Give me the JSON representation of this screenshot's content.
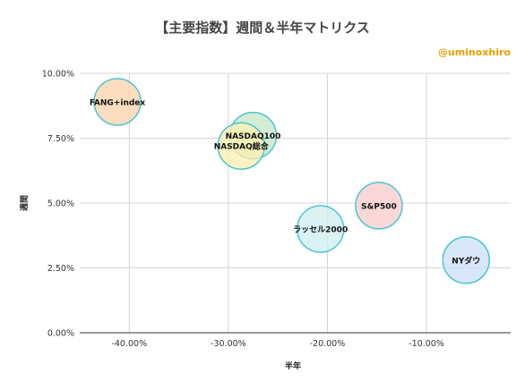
{
  "chart_data": {
    "type": "scatter",
    "title": "【主要指数】週間＆半年マトリクス",
    "credit": "@uminoxhiro",
    "xlabel": "半年",
    "ylabel": "週間",
    "xlim": [
      -0.45,
      -0.015
    ],
    "ylim": [
      0,
      0.1
    ],
    "x_ticks": [
      -0.4,
      -0.3,
      -0.2,
      -0.1
    ],
    "x_tick_labels": [
      "-40.00%",
      "-30.00%",
      "-20.00%",
      "-10.00%"
    ],
    "y_ticks": [
      0,
      0.025,
      0.05,
      0.075,
      0.1
    ],
    "y_tick_labels": [
      "0.00%",
      "2.50%",
      "5.00%",
      "7.50%",
      "10.00%"
    ],
    "grid": true,
    "points": [
      {
        "label": "FANG+index",
        "x": -0.412,
        "y": 0.089,
        "fill": "#fbd3ad",
        "stroke": "#4cc4d2"
      },
      {
        "label": "NASDAQ100",
        "x": -0.275,
        "y": 0.076,
        "fill": "#c7e8c8",
        "stroke": "#4cc4d2"
      },
      {
        "label": "NASDAQ総合",
        "x": -0.287,
        "y": 0.072,
        "fill": "#fbefb0",
        "stroke": "#4cc4d2"
      },
      {
        "label": "ラッセル2000",
        "x": -0.207,
        "y": 0.04,
        "fill": "#cfeef0",
        "stroke": "#4cc4d2"
      },
      {
        "label": "S&P500",
        "x": -0.148,
        "y": 0.049,
        "fill": "#f9cdcd",
        "stroke": "#4cc4d2"
      },
      {
        "label": "NYダウ",
        "x": -0.06,
        "y": 0.028,
        "fill": "#cde0f7",
        "stroke": "#4cc4d2"
      }
    ]
  }
}
